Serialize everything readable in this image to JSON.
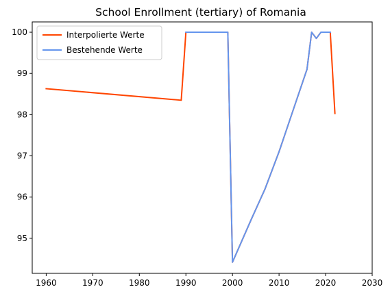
{
  "chart_data": {
    "type": "line",
    "title": "School Enrollment (tertiary) of Romania",
    "xlabel": "",
    "ylabel": "",
    "xlim": [
      1957,
      2030
    ],
    "ylim": [
      94.15,
      100.25
    ],
    "xticks": [
      1960,
      1970,
      1980,
      1990,
      2000,
      2010,
      2020,
      2030
    ],
    "yticks": [
      95,
      96,
      97,
      98,
      99,
      100
    ],
    "grid": false,
    "legend_position": "top-left",
    "series": [
      {
        "name": "Interpolierte Werte",
        "color": "#ff4500",
        "points": [
          [
            1960,
            98.63
          ],
          [
            1989,
            98.35
          ],
          [
            1990,
            100
          ],
          [
            1999,
            100
          ],
          [
            2000,
            94.42
          ],
          [
            2004,
            95.45
          ],
          [
            2007,
            96.2
          ],
          [
            2010,
            97.1
          ],
          [
            2013,
            98.1
          ],
          [
            2016,
            99.1
          ],
          [
            2017,
            100
          ],
          [
            2018,
            99.85
          ],
          [
            2019,
            100
          ],
          [
            2021,
            100
          ],
          [
            2022,
            98.03
          ]
        ]
      },
      {
        "name": "Bestehende Werte",
        "color": "#6495ed",
        "points": [
          [
            1990,
            100
          ],
          [
            1999,
            100
          ],
          [
            2000,
            94.42
          ],
          [
            2004,
            95.45
          ],
          [
            2007,
            96.2
          ],
          [
            2010,
            97.1
          ],
          [
            2013,
            98.1
          ],
          [
            2016,
            99.1
          ],
          [
            2017,
            100
          ],
          [
            2018,
            99.85
          ],
          [
            2019,
            100
          ],
          [
            2021,
            100
          ]
        ]
      }
    ]
  }
}
